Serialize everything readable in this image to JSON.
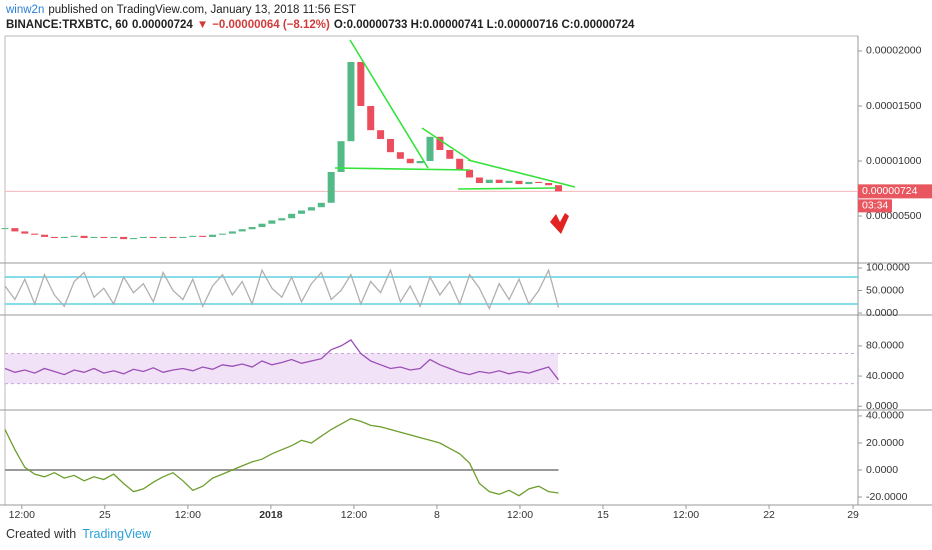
{
  "header": {
    "user": "winw2n",
    "published": "published on TradingView.com, January 13, 2018 11:56 EST",
    "symbol": "BINANCE:TRXBTC, 60",
    "price": "0.00000724",
    "change": "−0.00000064 (−8.12%)",
    "ohlc": "O:0.00000733 H:0.00000741 L:0.00000716 C:0.00000724"
  },
  "footer": {
    "created": "Created with",
    "brand": "TradingView"
  },
  "chart_data": [
    {
      "type": "candlestick",
      "x": [
        0,
        10,
        20,
        30,
        40,
        50,
        60,
        70,
        80,
        90,
        100,
        110,
        120,
        130,
        140,
        150,
        160,
        170,
        180,
        190,
        200,
        210,
        220,
        230,
        240,
        250,
        260,
        270,
        280,
        290,
        300,
        310,
        320,
        330,
        340,
        350,
        360,
        370,
        380,
        390,
        400,
        410,
        420,
        430,
        440,
        450,
        460,
        470,
        480,
        490,
        500,
        510,
        520,
        530,
        540,
        550,
        560
      ],
      "values": [
        3.9e-06,
        3.6e-06,
        3.4e-06,
        3.3e-06,
        3.1e-06,
        3e-06,
        3.1e-06,
        3.2e-06,
        3e-06,
        3.1e-06,
        3e-06,
        3.1e-06,
        2.9e-06,
        3e-06,
        3.1e-06,
        3e-06,
        3.1e-06,
        3e-06,
        3.1e-06,
        3.2e-06,
        3.1e-06,
        3.3e-06,
        3.4e-06,
        3.6e-06,
        3.8e-06,
        4e-06,
        4.3e-06,
        4.6e-06,
        4.8e-06,
        5.2e-06,
        5.5e-06,
        5.8e-06,
        6.2e-06,
        9e-06,
        1.18e-05,
        1.9e-05,
        1.5e-05,
        1.28e-05,
        1.2e-05,
        1.08e-05,
        1.02e-05,
        9.8e-06,
        1e-05,
        1.22e-05,
        1.1e-05,
        1.02e-05,
        9.2e-06,
        8.5e-06,
        8e-06,
        8.3e-06,
        8e-06,
        8.2e-06,
        7.9e-06,
        8.1e-06,
        8e-06,
        7.8e-06,
        7.24e-06
      ],
      "up_color": "#53b987",
      "down_color": "#eb4d5c",
      "last_price_label": "0.00000724",
      "countdown": "03:34",
      "xlim": [
        0,
        863
      ],
      "ylim": [
        7.3e-07,
        2.136e-05
      ],
      "yticks": [
        {
          "value": 5e-06,
          "label": "0.00000500"
        },
        {
          "value": 1e-05,
          "label": "0.00001000"
        },
        {
          "value": 1.5e-05,
          "label": "0.00001500"
        },
        {
          "value": 2e-05,
          "label": "0.00002000"
        }
      ]
    },
    {
      "type": "line",
      "x": [
        0,
        10,
        20,
        30,
        40,
        50,
        60,
        70,
        80,
        90,
        100,
        110,
        120,
        130,
        140,
        150,
        160,
        170,
        180,
        190,
        200,
        210,
        220,
        230,
        240,
        250,
        260,
        270,
        280,
        290,
        300,
        310,
        320,
        330,
        340,
        350,
        360,
        370,
        380,
        390,
        400,
        410,
        420,
        430,
        440,
        450,
        460,
        470,
        480,
        490,
        500,
        510,
        520,
        530,
        540,
        550,
        560
      ],
      "values": [
        60,
        30,
        75,
        20,
        85,
        40,
        15,
        70,
        90,
        35,
        55,
        20,
        80,
        45,
        65,
        25,
        90,
        50,
        30,
        75,
        15,
        60,
        85,
        40,
        70,
        20,
        95,
        55,
        35,
        80,
        25,
        65,
        90,
        30,
        50,
        85,
        20,
        70,
        45,
        95,
        25,
        60,
        15,
        80,
        40,
        70,
        20,
        85,
        55,
        10,
        65,
        30,
        75,
        20,
        50,
        95,
        12
      ],
      "color": "#b0b0b0",
      "bands": [
        20,
        80
      ],
      "band_color": "#5fd0e0",
      "xlim": [
        0,
        863
      ],
      "ylim": [
        -4.4,
        111
      ],
      "yticks": [
        {
          "value": 0,
          "label": "0.0000"
        },
        {
          "value": 50,
          "label": "50.0000"
        },
        {
          "value": 100,
          "label": "100.0000"
        }
      ]
    },
    {
      "type": "line",
      "x": [
        0,
        10,
        20,
        30,
        40,
        50,
        60,
        70,
        80,
        90,
        100,
        110,
        120,
        130,
        140,
        150,
        160,
        170,
        180,
        190,
        200,
        210,
        220,
        230,
        240,
        250,
        260,
        270,
        280,
        290,
        300,
        310,
        320,
        330,
        340,
        350,
        360,
        370,
        380,
        390,
        400,
        410,
        420,
        430,
        440,
        450,
        460,
        470,
        480,
        490,
        500,
        510,
        520,
        530,
        540,
        550,
        560
      ],
      "values": [
        50,
        45,
        48,
        44,
        50,
        46,
        42,
        48,
        45,
        50,
        44,
        47,
        43,
        49,
        46,
        51,
        45,
        48,
        50,
        47,
        52,
        49,
        55,
        53,
        56,
        52,
        60,
        55,
        58,
        62,
        57,
        60,
        63,
        75,
        80,
        88,
        70,
        60,
        55,
        50,
        52,
        48,
        50,
        62,
        55,
        50,
        45,
        42,
        46,
        44,
        47,
        43,
        46,
        44,
        48,
        52,
        35
      ],
      "color": "#9c4fb5",
      "bands": [
        30,
        70
      ],
      "band_color": "#f1e2f8",
      "xlim": [
        0,
        863
      ],
      "ylim": [
        -5,
        121
      ],
      "yticks": [
        {
          "value": 0,
          "label": "0.0000"
        },
        {
          "value": 40,
          "label": "40.0000"
        },
        {
          "value": 80,
          "label": "80.0000"
        }
      ]
    },
    {
      "type": "line",
      "x": [
        0,
        10,
        20,
        30,
        40,
        50,
        60,
        70,
        80,
        90,
        100,
        110,
        120,
        130,
        140,
        150,
        160,
        170,
        180,
        190,
        200,
        210,
        220,
        230,
        240,
        250,
        260,
        270,
        280,
        290,
        300,
        310,
        320,
        330,
        340,
        350,
        360,
        370,
        380,
        390,
        400,
        410,
        420,
        430,
        440,
        450,
        460,
        470,
        480,
        490,
        500,
        510,
        520,
        530,
        540,
        550,
        560
      ],
      "values": [
        30,
        15,
        2,
        -3,
        -5,
        -2,
        -6,
        -4,
        -8,
        -5,
        -7,
        -3,
        -10,
        -16,
        -14,
        -9,
        -5,
        -2,
        -8,
        -15,
        -12,
        -6,
        -3,
        0,
        3,
        6,
        8,
        12,
        15,
        18,
        22,
        20,
        25,
        30,
        34,
        38,
        36,
        33,
        32,
        30,
        28,
        26,
        24,
        22,
        20,
        16,
        12,
        5,
        -10,
        -16,
        -18,
        -15,
        -19,
        -14,
        -12,
        -16,
        -17
      ],
      "color": "#6d9e2e",
      "hline": 0,
      "xlim": [
        0,
        863
      ],
      "ylim": [
        -25.9,
        44.4
      ],
      "yticks": [
        {
          "value": -20,
          "label": "-20.0000"
        },
        {
          "value": 0,
          "label": "0.0000"
        },
        {
          "value": 20,
          "label": "20.0000"
        },
        {
          "value": 40,
          "label": "40.0000"
        }
      ],
      "xticks": [
        {
          "value": 17,
          "label": "12:00"
        },
        {
          "value": 101,
          "label": "25"
        },
        {
          "value": 185,
          "label": "12:00"
        },
        {
          "value": 269,
          "label": "2018"
        },
        {
          "value": 353,
          "label": "12:00"
        },
        {
          "value": 437,
          "label": "8"
        },
        {
          "value": 521,
          "label": "12:00"
        },
        {
          "value": 605,
          "label": "15"
        },
        {
          "value": 689,
          "label": "12:00"
        },
        {
          "value": 773,
          "label": "22"
        },
        {
          "value": 858,
          "label": "29"
        }
      ]
    }
  ]
}
